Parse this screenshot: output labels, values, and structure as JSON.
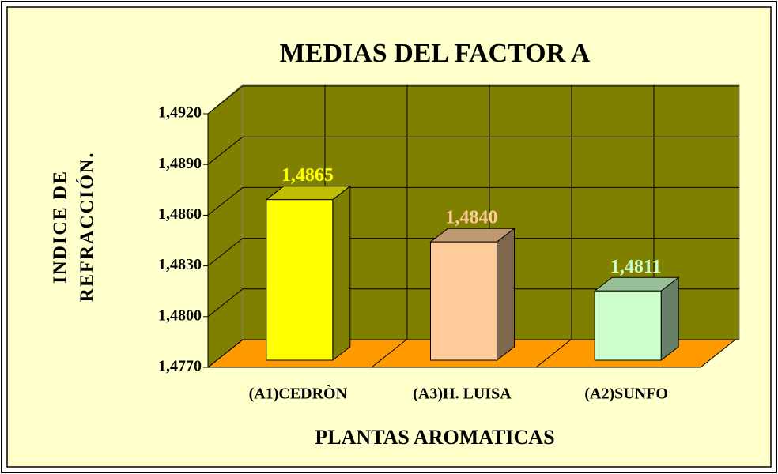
{
  "chart_data": {
    "type": "bar3d",
    "title": "MEDIAS DEL FACTOR A",
    "ylabel": [
      "INDICE DE",
      "REFRACCIÓN."
    ],
    "xlabel": "PLANTAS AROMATICAS",
    "categories": [
      "(A1)CEDRÒN",
      "(A3)H. LUISA",
      "(A2)SUNFO"
    ],
    "values": [
      1.4865,
      1.484,
      1.4811
    ],
    "value_labels": [
      "1,4865",
      "1,4840",
      "1,4811"
    ],
    "colors": [
      "#ffff00",
      "#ffcc99",
      "#ccffcc"
    ],
    "ylim": [
      1.477,
      1.492
    ],
    "yticks": [
      {
        "value": 1.477,
        "label": "1,4770"
      },
      {
        "value": 1.48,
        "label": "1,4800"
      },
      {
        "value": 1.483,
        "label": "1,4830"
      },
      {
        "value": 1.486,
        "label": "1,4860"
      },
      {
        "value": 1.489,
        "label": "1,4890"
      },
      {
        "value": 1.492,
        "label": "1,4920"
      }
    ],
    "grid": true
  }
}
